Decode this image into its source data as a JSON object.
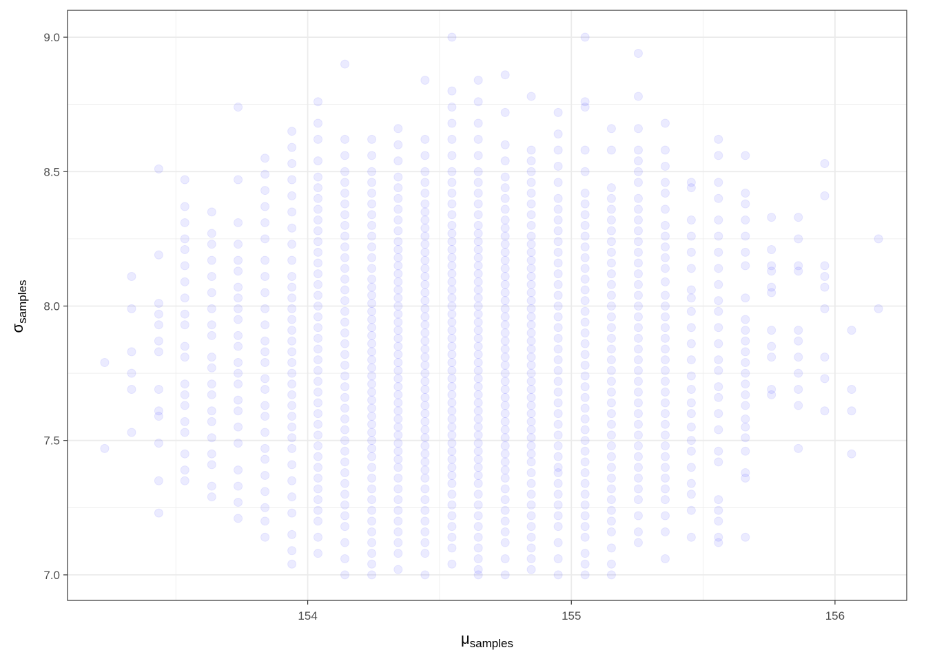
{
  "chart_data": {
    "type": "scatter",
    "xlabel": "μ",
    "xlabel_subscript": "samples",
    "ylabel": "σ",
    "ylabel_subscript": "samples",
    "xlim": [
      153.089,
      156.272
    ],
    "ylim": [
      6.905,
      9.1
    ],
    "xticks": [
      154,
      155,
      156
    ],
    "yticks": [
      {
        "value": 7,
        "label": "7.0"
      },
      7.5,
      {
        "value": 8,
        "label": "8.0"
      },
      8.5,
      {
        "value": 9,
        "label": "9.0"
      }
    ],
    "x_minor_ticks": [
      153.5,
      154.5,
      155.5
    ],
    "y_minor_ticks": [
      7.25,
      7.75,
      8.25,
      8.75
    ],
    "grid": true,
    "color": "#0000ff",
    "alpha": 0.08,
    "columns": [
      {
        "x": 153.23,
        "y": [
          7.79,
          7.47
        ]
      },
      {
        "x": 153.332,
        "y": [
          8.11,
          7.99,
          7.83,
          7.75,
          7.69,
          7.53
        ]
      },
      {
        "x": 153.435,
        "y": [
          8.51,
          8.19,
          8.01,
          7.97,
          7.93,
          7.87,
          7.83,
          7.69,
          7.61,
          7.59,
          7.49,
          7.35,
          7.23
        ]
      },
      {
        "x": 153.534,
        "y": [
          8.47,
          8.37,
          8.31,
          8.25,
          8.21,
          8.15,
          8.09,
          8.03,
          7.97,
          7.93,
          7.85,
          7.81,
          7.71,
          7.67,
          7.63,
          7.57,
          7.53,
          7.45,
          7.39,
          7.35
        ]
      },
      {
        "x": 153.636,
        "y": [
          8.35,
          8.27,
          8.23,
          8.17,
          8.11,
          8.05,
          7.99,
          7.93,
          7.89,
          7.81,
          7.77,
          7.71,
          7.67,
          7.61,
          7.57,
          7.51,
          7.45,
          7.41,
          7.33,
          7.29
        ]
      },
      {
        "x": 153.736,
        "y": [
          8.74,
          8.47,
          8.31,
          8.23,
          8.17,
          8.13,
          8.07,
          8.03,
          7.99,
          7.95,
          7.89,
          7.85,
          7.79,
          7.75,
          7.71,
          7.65,
          7.61,
          7.55,
          7.49,
          7.39,
          7.33,
          7.27,
          7.21
        ]
      },
      {
        "x": 153.838,
        "y": [
          8.55,
          8.49,
          8.43,
          8.37,
          8.31,
          8.25,
          8.17,
          8.11,
          8.05,
          7.99,
          7.93,
          7.87,
          7.83,
          7.79,
          7.73,
          7.69,
          7.63,
          7.59,
          7.53,
          7.47,
          7.43,
          7.37,
          7.31,
          7.25,
          7.2,
          7.14
        ]
      },
      {
        "x": 153.94,
        "y": [
          8.65,
          8.59,
          8.53,
          8.47,
          8.41,
          8.35,
          8.29,
          8.23,
          8.17,
          8.11,
          8.07,
          8.03,
          7.99,
          7.95,
          7.91,
          7.87,
          7.83,
          7.79,
          7.75,
          7.71,
          7.67,
          7.63,
          7.59,
          7.55,
          7.51,
          7.47,
          7.41,
          7.35,
          7.29,
          7.23,
          7.15,
          7.09,
          7.04
        ]
      },
      {
        "x": 154.039,
        "y": [
          8.76,
          8.68,
          8.62,
          8.54,
          8.48,
          8.44,
          8.4,
          8.36,
          8.32,
          8.28,
          8.24,
          8.2,
          8.16,
          8.12,
          8.08,
          8.04,
          8,
          7.96,
          7.92,
          7.88,
          7.84,
          7.8,
          7.76,
          7.72,
          7.68,
          7.64,
          7.6,
          7.56,
          7.52,
          7.48,
          7.44,
          7.4,
          7.36,
          7.32,
          7.28,
          7.24,
          7.2,
          7.14,
          7.08
        ]
      },
      {
        "x": 154.141,
        "y": [
          8.9,
          8.62,
          8.56,
          8.5,
          8.46,
          8.42,
          8.38,
          8.34,
          8.3,
          8.26,
          8.22,
          8.18,
          8.14,
          8.1,
          8.06,
          8.02,
          7.98,
          7.94,
          7.9,
          7.86,
          7.82,
          7.78,
          7.74,
          7.7,
          7.66,
          7.62,
          7.58,
          7.54,
          7.5,
          7.46,
          7.42,
          7.38,
          7.34,
          7.3,
          7.26,
          7.22,
          7.18,
          7.12,
          7.06,
          7
        ]
      },
      {
        "x": 154.243,
        "y": [
          8.62,
          8.56,
          8.5,
          8.46,
          8.42,
          8.38,
          8.34,
          8.3,
          8.26,
          8.22,
          8.18,
          8.14,
          8.1,
          8.07,
          8.04,
          8.01,
          7.98,
          7.95,
          7.92,
          7.89,
          7.86,
          7.83,
          7.8,
          7.77,
          7.74,
          7.71,
          7.68,
          7.65,
          7.62,
          7.59,
          7.56,
          7.53,
          7.5,
          7.47,
          7.44,
          7.4,
          7.36,
          7.32,
          7.28,
          7.24,
          7.2,
          7.16,
          7.12,
          7.08,
          7.04,
          7
        ]
      },
      {
        "x": 154.343,
        "y": [
          8.66,
          8.6,
          8.54,
          8.48,
          8.44,
          8.4,
          8.36,
          8.32,
          8.28,
          8.24,
          8.21,
          8.18,
          8.15,
          8.12,
          8.09,
          8.06,
          8.03,
          8,
          7.97,
          7.94,
          7.91,
          7.88,
          7.85,
          7.82,
          7.79,
          7.76,
          7.73,
          7.7,
          7.67,
          7.64,
          7.61,
          7.58,
          7.55,
          7.52,
          7.49,
          7.46,
          7.43,
          7.4,
          7.36,
          7.32,
          7.28,
          7.24,
          7.2,
          7.16,
          7.12,
          7.08,
          7.02
        ]
      },
      {
        "x": 154.445,
        "y": [
          8.84,
          8.62,
          8.56,
          8.5,
          8.46,
          8.42,
          8.38,
          8.35,
          8.32,
          8.29,
          8.26,
          8.23,
          8.2,
          8.17,
          8.14,
          8.11,
          8.08,
          8.05,
          8.02,
          7.99,
          7.96,
          7.93,
          7.9,
          7.87,
          7.84,
          7.81,
          7.78,
          7.75,
          7.72,
          7.69,
          7.66,
          7.63,
          7.6,
          7.57,
          7.54,
          7.51,
          7.48,
          7.45,
          7.42,
          7.39,
          7.36,
          7.32,
          7.28,
          7.24,
          7.2,
          7.16,
          7.12,
          7.08,
          7
        ]
      },
      {
        "x": 154.547,
        "y": [
          9,
          8.8,
          8.74,
          8.68,
          8.62,
          8.56,
          8.5,
          8.46,
          8.42,
          8.38,
          8.34,
          8.3,
          8.27,
          8.24,
          8.21,
          8.18,
          8.15,
          8.12,
          8.09,
          8.06,
          8.03,
          8,
          7.97,
          7.94,
          7.91,
          7.88,
          7.85,
          7.82,
          7.79,
          7.76,
          7.73,
          7.7,
          7.67,
          7.64,
          7.61,
          7.58,
          7.55,
          7.52,
          7.49,
          7.46,
          7.43,
          7.4,
          7.37,
          7.34,
          7.3,
          7.26,
          7.22,
          7.18,
          7.14,
          7.1,
          7.04
        ]
      },
      {
        "x": 154.647,
        "y": [
          8.84,
          8.76,
          8.68,
          8.62,
          8.56,
          8.5,
          8.46,
          8.42,
          8.38,
          8.34,
          8.3,
          8.27,
          8.24,
          8.21,
          8.18,
          8.15,
          8.12,
          8.09,
          8.06,
          8.03,
          8,
          7.97,
          7.94,
          7.91,
          7.88,
          7.85,
          7.82,
          7.79,
          7.76,
          7.73,
          7.7,
          7.67,
          7.64,
          7.61,
          7.58,
          7.55,
          7.52,
          7.49,
          7.46,
          7.43,
          7.4,
          7.37,
          7.34,
          7.3,
          7.26,
          7.22,
          7.18,
          7.14,
          7.1,
          7.06,
          7.02,
          7
        ]
      },
      {
        "x": 154.749,
        "y": [
          8.86,
          8.72,
          8.6,
          8.54,
          8.48,
          8.44,
          8.4,
          8.36,
          8.32,
          8.29,
          8.26,
          8.23,
          8.2,
          8.17,
          8.14,
          8.11,
          8.08,
          8.05,
          8.02,
          7.99,
          7.96,
          7.93,
          7.9,
          7.87,
          7.84,
          7.81,
          7.78,
          7.75,
          7.72,
          7.69,
          7.66,
          7.63,
          7.6,
          7.57,
          7.54,
          7.51,
          7.48,
          7.45,
          7.42,
          7.39,
          7.36,
          7.32,
          7.28,
          7.24,
          7.2,
          7.16,
          7.12,
          7.06,
          7
        ]
      },
      {
        "x": 154.848,
        "y": [
          8.78,
          8.58,
          8.54,
          8.5,
          8.46,
          8.42,
          8.38,
          8.34,
          8.3,
          8.26,
          8.23,
          8.2,
          8.17,
          8.14,
          8.11,
          8.08,
          8.05,
          8.02,
          7.99,
          7.96,
          7.93,
          7.9,
          7.87,
          7.84,
          7.81,
          7.78,
          7.75,
          7.72,
          7.69,
          7.66,
          7.63,
          7.6,
          7.57,
          7.54,
          7.51,
          7.48,
          7.45,
          7.42,
          7.38,
          7.34,
          7.3,
          7.26,
          7.22,
          7.18,
          7.14,
          7.1,
          7.06,
          7.02
        ]
      },
      {
        "x": 154.95,
        "y": [
          8.72,
          8.64,
          8.58,
          8.52,
          8.46,
          8.4,
          8.36,
          8.32,
          8.28,
          8.24,
          8.2,
          8.16,
          8.12,
          8.08,
          8.04,
          8,
          7.96,
          7.92,
          7.88,
          7.84,
          7.8,
          7.76,
          7.72,
          7.68,
          7.64,
          7.6,
          7.56,
          7.52,
          7.48,
          7.44,
          7.4,
          7.38,
          7.34,
          7.3,
          7.26,
          7.22,
          7.18,
          7.12,
          7.06,
          7
        ]
      },
      {
        "x": 155.052,
        "y": [
          9,
          8.76,
          8.74,
          8.58,
          8.5,
          8.42,
          8.38,
          8.34,
          8.3,
          8.26,
          8.22,
          8.18,
          8.14,
          8.1,
          8.06,
          8.02,
          7.98,
          7.94,
          7.9,
          7.86,
          7.82,
          7.78,
          7.74,
          7.7,
          7.66,
          7.62,
          7.58,
          7.54,
          7.5,
          7.46,
          7.42,
          7.38,
          7.34,
          7.3,
          7.26,
          7.22,
          7.18,
          7.14,
          7.08,
          7.04,
          7
        ]
      },
      {
        "x": 155.152,
        "y": [
          8.66,
          8.58,
          8.44,
          8.4,
          8.36,
          8.32,
          8.28,
          8.24,
          8.2,
          8.16,
          8.12,
          8.08,
          8.04,
          8,
          7.96,
          7.92,
          7.88,
          7.84,
          7.8,
          7.76,
          7.72,
          7.68,
          7.64,
          7.6,
          7.56,
          7.52,
          7.48,
          7.44,
          7.4,
          7.36,
          7.32,
          7.28,
          7.24,
          7.2,
          7.16,
          7.1,
          7.04,
          7
        ]
      },
      {
        "x": 155.254,
        "y": [
          8.94,
          8.78,
          8.66,
          8.58,
          8.54,
          8.5,
          8.46,
          8.4,
          8.36,
          8.32,
          8.28,
          8.24,
          8.2,
          8.16,
          8.12,
          8.08,
          8.04,
          8,
          7.96,
          7.92,
          7.88,
          7.84,
          7.8,
          7.76,
          7.72,
          7.68,
          7.64,
          7.6,
          7.56,
          7.52,
          7.48,
          7.44,
          7.4,
          7.36,
          7.32,
          7.28,
          7.22,
          7.16,
          7.12
        ]
      },
      {
        "x": 155.356,
        "y": [
          8.68,
          8.58,
          8.52,
          8.46,
          8.42,
          8.36,
          8.3,
          8.26,
          8.22,
          8.18,
          8.14,
          8.09,
          8.04,
          8,
          7.96,
          7.92,
          7.88,
          7.84,
          7.8,
          7.76,
          7.72,
          7.68,
          7.64,
          7.6,
          7.56,
          7.52,
          7.48,
          7.44,
          7.4,
          7.36,
          7.32,
          7.28,
          7.22,
          7.16,
          7.06
        ]
      },
      {
        "x": 155.455,
        "y": [
          8.46,
          8.44,
          8.32,
          8.26,
          8.2,
          8.14,
          8.06,
          8.03,
          7.98,
          7.92,
          7.86,
          7.8,
          7.74,
          7.69,
          7.64,
          7.6,
          7.55,
          7.5,
          7.46,
          7.4,
          7.34,
          7.3,
          7.24,
          7.14
        ]
      },
      {
        "x": 155.558,
        "y": [
          8.62,
          8.56,
          8.46,
          8.4,
          8.32,
          8.26,
          8.2,
          8.14,
          8.08,
          8.02,
          7.98,
          7.92,
          7.86,
          7.8,
          7.76,
          7.7,
          7.66,
          7.6,
          7.54,
          7.46,
          7.42,
          7.28,
          7.24,
          7.2,
          7.14,
          7.12
        ]
      },
      {
        "x": 155.66,
        "y": [
          8.56,
          8.42,
          8.38,
          8.32,
          8.26,
          8.2,
          8.15,
          8.03,
          7.95,
          7.91,
          7.87,
          7.83,
          7.79,
          7.75,
          7.71,
          7.67,
          7.63,
          7.58,
          7.55,
          7.51,
          7.46,
          7.38,
          7.36,
          7.14
        ]
      },
      {
        "x": 155.759,
        "y": [
          8.33,
          8.21,
          8.15,
          8.13,
          8.07,
          8.05,
          7.91,
          7.85,
          7.81,
          7.69,
          7.67
        ]
      },
      {
        "x": 155.861,
        "y": [
          8.33,
          8.25,
          8.15,
          8.13,
          7.91,
          7.87,
          7.81,
          7.75,
          7.69,
          7.63,
          7.47
        ]
      },
      {
        "x": 155.961,
        "y": [
          8.53,
          8.41,
          8.15,
          8.11,
          8.07,
          7.99,
          7.81,
          7.73,
          7.61
        ]
      },
      {
        "x": 156.063,
        "y": [
          7.91,
          7.69,
          7.61,
          7.45
        ]
      },
      {
        "x": 156.165,
        "y": [
          8.25,
          7.99
        ]
      }
    ]
  }
}
